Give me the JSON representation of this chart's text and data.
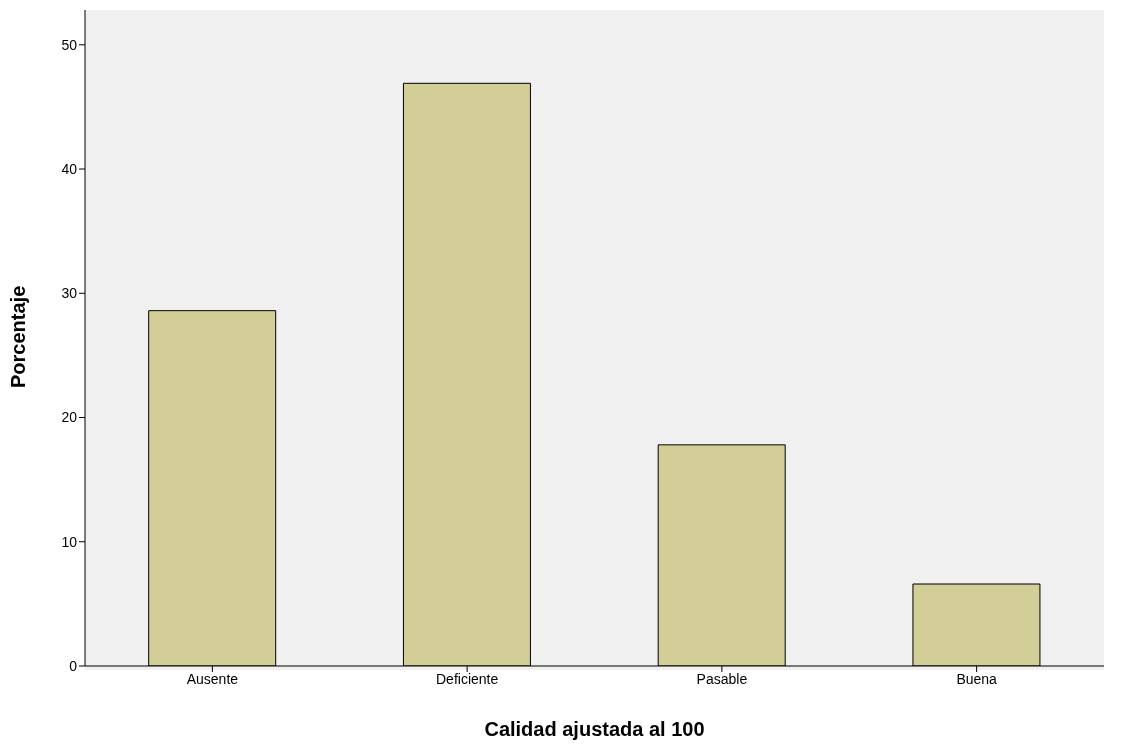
{
  "chart_data": {
    "type": "bar",
    "xlabel": "Calidad ajustada al 100",
    "ylabel": "Porcentaje",
    "categories": [
      "Ausente",
      "Deficiente",
      "Pasable",
      "Buena"
    ],
    "values": [
      28.6,
      46.9,
      17.8,
      6.6
    ],
    "color": "#d3ce97",
    "ylim": [
      0,
      52.8
    ],
    "yticks": [
      0,
      10,
      20,
      30,
      40,
      50
    ],
    "grid": false,
    "legend": false
  }
}
